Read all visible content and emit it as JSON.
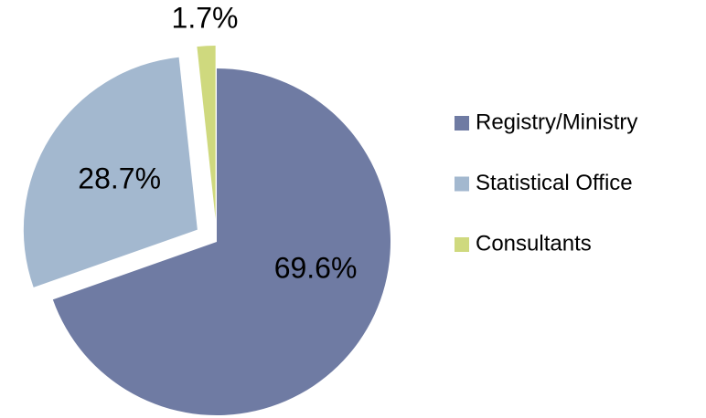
{
  "chart_data": {
    "type": "pie",
    "categories": [
      "Registry/Ministry",
      "Statistical Office",
      "Consultants"
    ],
    "values": [
      69.6,
      28.7,
      1.7
    ],
    "value_labels": [
      "69.6%",
      "28.7%",
      "1.7%"
    ],
    "colors": [
      "#6f7ba3",
      "#a3b8cf",
      "#cfd97e"
    ],
    "legend": "right"
  }
}
